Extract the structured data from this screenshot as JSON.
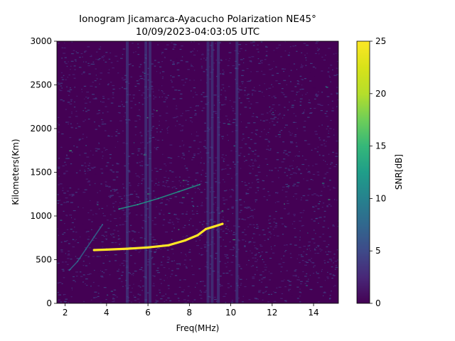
{
  "chart_data": {
    "type": "heatmap",
    "title": "Ionogram Jicamarca-Ayacucho Polarization NE45°",
    "subtitle": "10/09/2023-04:03:05 UTC",
    "xlabel": "Freq(MHz)",
    "ylabel": "Kilometers(Km)",
    "xlim": [
      1.6,
      15.2
    ],
    "ylim": [
      0,
      3000
    ],
    "xticks": [
      2,
      4,
      6,
      8,
      10,
      12,
      14
    ],
    "yticks": [
      0,
      500,
      1000,
      1500,
      2000,
      2500,
      3000
    ],
    "colorbar": {
      "label": "SNR[dB]",
      "range": [
        0,
        25
      ],
      "ticks": [
        0,
        5,
        10,
        15,
        20,
        25
      ],
      "colormap": "viridis"
    },
    "traces": [
      {
        "description": "strong echo trace",
        "snr_db": 25,
        "points": [
          [
            3.4,
            610
          ],
          [
            4.0,
            615
          ],
          [
            5.0,
            625
          ],
          [
            6.0,
            640
          ],
          [
            7.0,
            665
          ],
          [
            7.8,
            720
          ],
          [
            8.4,
            780
          ],
          [
            8.8,
            850
          ],
          [
            9.2,
            880
          ],
          [
            9.6,
            910
          ]
        ]
      },
      {
        "description": "second hop trace",
        "snr_db": 12,
        "points": [
          [
            4.6,
            1080
          ],
          [
            5.5,
            1130
          ],
          [
            6.5,
            1200
          ],
          [
            7.5,
            1280
          ],
          [
            8.5,
            1360
          ]
        ]
      },
      {
        "description": "faint oblique trace",
        "snr_db": 8,
        "points": [
          [
            2.2,
            380
          ],
          [
            2.6,
            480
          ],
          [
            3.0,
            620
          ],
          [
            3.4,
            760
          ],
          [
            3.8,
            900
          ]
        ]
      }
    ],
    "interference_bands_mhz": [
      5.0,
      5.9,
      6.1,
      8.9,
      9.1,
      9.4,
      10.3
    ]
  }
}
